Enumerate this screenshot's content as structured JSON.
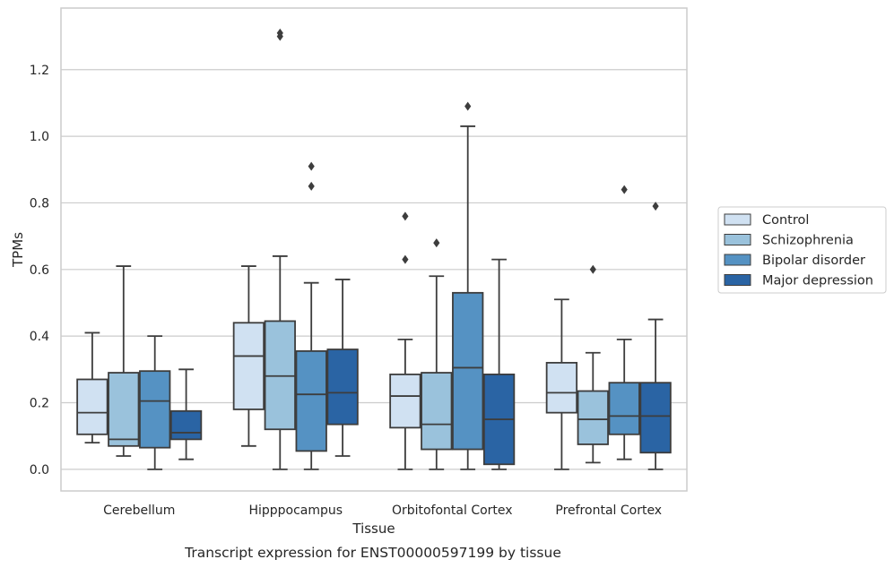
{
  "chart_data": {
    "type": "boxplot",
    "xlabel": "Tissue",
    "ylabel": "TPMs",
    "caption": "Transcript expression for ENST00000597199 by tissue",
    "ylim": [
      -0.065,
      1.385
    ],
    "yticks": [
      "0.0",
      "0.2",
      "0.4",
      "0.6",
      "0.8",
      "1.0",
      "1.2"
    ],
    "grid": "horizontal",
    "legend_position": "right",
    "categories": [
      "Cerebellum",
      "Hipppocampus",
      "Orbitofontal Cortex",
      "Prefrontal Cortex"
    ],
    "series": [
      {
        "name": "Control",
        "color": "#d0e1f2",
        "boxes": [
          {
            "q1": 0.105,
            "median": 0.17,
            "q3": 0.27,
            "whisker_low": 0.08,
            "whisker_high": 0.41,
            "outliers": []
          },
          {
            "q1": 0.18,
            "median": 0.34,
            "q3": 0.44,
            "whisker_low": 0.07,
            "whisker_high": 0.61,
            "outliers": []
          },
          {
            "q1": 0.125,
            "median": 0.22,
            "q3": 0.285,
            "whisker_low": 0.0,
            "whisker_high": 0.39,
            "outliers": [
              0.63,
              0.76
            ]
          },
          {
            "q1": 0.17,
            "median": 0.23,
            "q3": 0.32,
            "whisker_low": 0.0,
            "whisker_high": 0.51,
            "outliers": []
          }
        ]
      },
      {
        "name": "Schizophrenia",
        "color": "#9ac2dc",
        "boxes": [
          {
            "q1": 0.07,
            "median": 0.09,
            "q3": 0.29,
            "whisker_low": 0.04,
            "whisker_high": 0.61,
            "outliers": []
          },
          {
            "q1": 0.12,
            "median": 0.28,
            "q3": 0.445,
            "whisker_low": 0.0,
            "whisker_high": 0.64,
            "outliers": [
              1.3,
              1.31
            ]
          },
          {
            "q1": 0.06,
            "median": 0.135,
            "q3": 0.29,
            "whisker_low": 0.0,
            "whisker_high": 0.58,
            "outliers": [
              0.68
            ]
          },
          {
            "q1": 0.075,
            "median": 0.15,
            "q3": 0.235,
            "whisker_low": 0.02,
            "whisker_high": 0.35,
            "outliers": [
              0.6
            ]
          }
        ]
      },
      {
        "name": "Bipolar disorder",
        "color": "#5592c3",
        "boxes": [
          {
            "q1": 0.065,
            "median": 0.205,
            "q3": 0.295,
            "whisker_low": 0.0,
            "whisker_high": 0.4,
            "outliers": []
          },
          {
            "q1": 0.055,
            "median": 0.225,
            "q3": 0.355,
            "whisker_low": 0.0,
            "whisker_high": 0.56,
            "outliers": [
              0.85,
              0.91
            ]
          },
          {
            "q1": 0.06,
            "median": 0.305,
            "q3": 0.53,
            "whisker_low": 0.0,
            "whisker_high": 1.03,
            "outliers": [
              1.09
            ]
          },
          {
            "q1": 0.105,
            "median": 0.16,
            "q3": 0.26,
            "whisker_low": 0.03,
            "whisker_high": 0.39,
            "outliers": [
              0.84
            ]
          }
        ]
      },
      {
        "name": "Major depression",
        "color": "#2a64a4",
        "boxes": [
          {
            "q1": 0.09,
            "median": 0.11,
            "q3": 0.175,
            "whisker_low": 0.03,
            "whisker_high": 0.3,
            "outliers": []
          },
          {
            "q1": 0.135,
            "median": 0.23,
            "q3": 0.36,
            "whisker_low": 0.04,
            "whisker_high": 0.57,
            "outliers": []
          },
          {
            "q1": 0.015,
            "median": 0.15,
            "q3": 0.285,
            "whisker_low": 0.0,
            "whisker_high": 0.63,
            "outliers": []
          },
          {
            "q1": 0.05,
            "median": 0.16,
            "q3": 0.26,
            "whisker_low": 0.0,
            "whisker_high": 0.45,
            "outliers": [
              0.79
            ]
          }
        ]
      }
    ]
  }
}
